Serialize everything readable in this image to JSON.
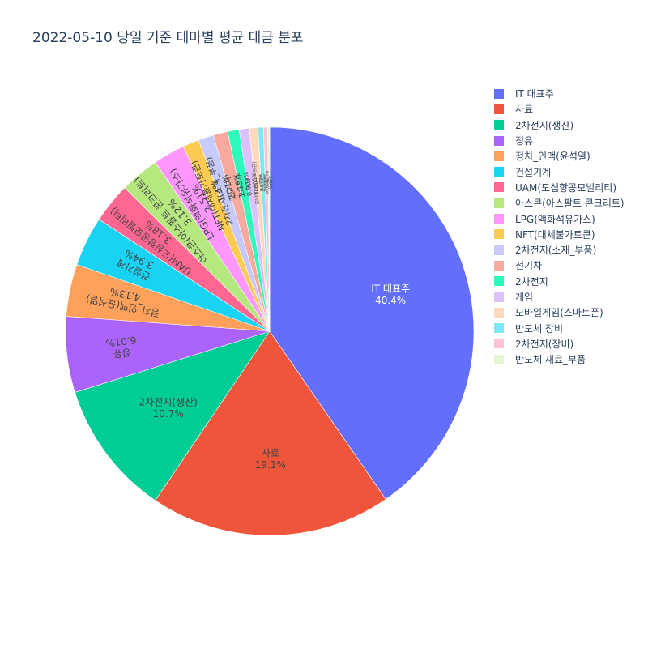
{
  "chart_data": {
    "type": "pie",
    "title": "2022-05-10 당일 기준 테마별 평균 대금 분포",
    "legend_position": "right",
    "sort": "descending",
    "direction": "clockwise",
    "start": "top",
    "slices": [
      {
        "label": "IT 대표주",
        "percent": 40.4,
        "text": "40.4%",
        "color": "#636efa",
        "text_color": "#ffffff"
      },
      {
        "label": "사료",
        "percent": 19.1,
        "text": "19.1%",
        "color": "#EF553B",
        "text_color": "#444444"
      },
      {
        "label": "2차전지(생산)",
        "percent": 10.7,
        "text": "10.7%",
        "color": "#00cc96",
        "text_color": "#444444"
      },
      {
        "label": "정유",
        "percent": 6.01,
        "text": "6.01%",
        "color": "#ab63fa",
        "text_color": "#444444"
      },
      {
        "label": "정치_인맥(윤석열)",
        "percent": 4.13,
        "text": "4.13%",
        "color": "#FFA15A",
        "text_color": "#444444"
      },
      {
        "label": "건설기계",
        "percent": 3.94,
        "text": "3.94%",
        "color": "#19d3f3",
        "text_color": "#444444"
      },
      {
        "label": "UAM(도심항공모빌리티)",
        "percent": 3.18,
        "text": "3.18%",
        "color": "#FF6692",
        "text_color": "#444444"
      },
      {
        "label": "아스콘(아스팔트 콘크리트)",
        "percent": 3.12,
        "text": "3.12%",
        "color": "#B6E880",
        "text_color": "#444444"
      },
      {
        "label": "LPG(액화석유가스)",
        "percent": 2.51,
        "text": "2.51%",
        "color": "#FF97FF",
        "text_color": "#444444"
      },
      {
        "label": "NFT(대체불가토큰)",
        "percent": 1.3,
        "text": "1.3%",
        "color": "#FECB52",
        "text_color": "#444444"
      },
      {
        "label": "2차전지(소재_부품)",
        "percent": 1.21,
        "text": "1.21%",
        "color": "#c6cafc",
        "text_color": "#444444"
      },
      {
        "label": "전기차",
        "percent": 1.15,
        "text": "1.15%",
        "color": "#f7aa9d",
        "text_color": "#444444"
      },
      {
        "label": "2차전지",
        "percent": 0.909,
        "text": "0.909%",
        "color": "#2efabe",
        "text_color": "#444444"
      },
      {
        "label": "게임",
        "percent": 0.805,
        "text": "0.805%",
        "color": "#dcc1fd",
        "text_color": "#444444"
      },
      {
        "label": "모바일게임(스마트폰)",
        "percent": 0.672,
        "text": "0.672%",
        "color": "#fed9bd",
        "text_color": "#444444"
      },
      {
        "label": "반도체 장비",
        "percent": 0.435,
        "text": "0.435%",
        "color": "#7de8f8",
        "text_color": "#444444"
      },
      {
        "label": "2차전지(장비)",
        "percent": 0.323,
        "text": "0.323%",
        "color": "#ffc2d4",
        "text_color": "#444444"
      },
      {
        "label": "반도체 재료_부품",
        "percent": 0.162,
        "text": "0.162%",
        "color": "#e4f5d2",
        "text_color": "#444444"
      }
    ]
  }
}
